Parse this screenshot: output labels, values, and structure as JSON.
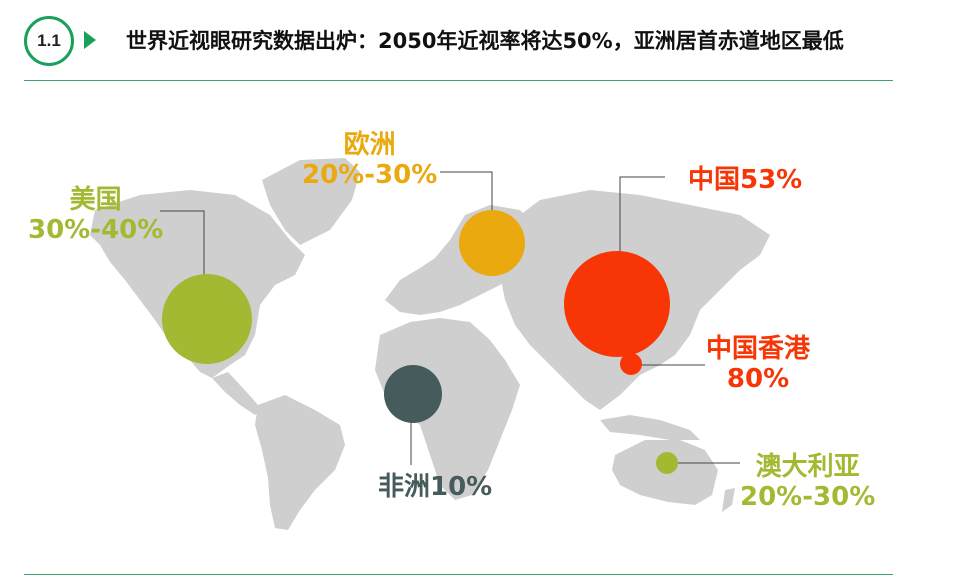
{
  "header": {
    "badge": "1.1",
    "title": "世界近视眼研究数据出炉：2050年近视率将达50%，亚洲居首赤道地区最低"
  },
  "regions": {
    "usa": {
      "name": "美国",
      "value": "30%-40%",
      "color": "#a3b931"
    },
    "europe": {
      "name": "欧洲",
      "value": "20%-30%",
      "color": "#e9a90f"
    },
    "china": {
      "name": "中国53%",
      "color": "#f73505"
    },
    "hongkong": {
      "name": "中国香港",
      "value": "80%",
      "color": "#f73505"
    },
    "africa": {
      "name": "非洲10%",
      "color": "#465b5b"
    },
    "australia": {
      "name": "澳大利亚",
      "value": "20%-30%",
      "color": "#a3b931"
    }
  }
}
